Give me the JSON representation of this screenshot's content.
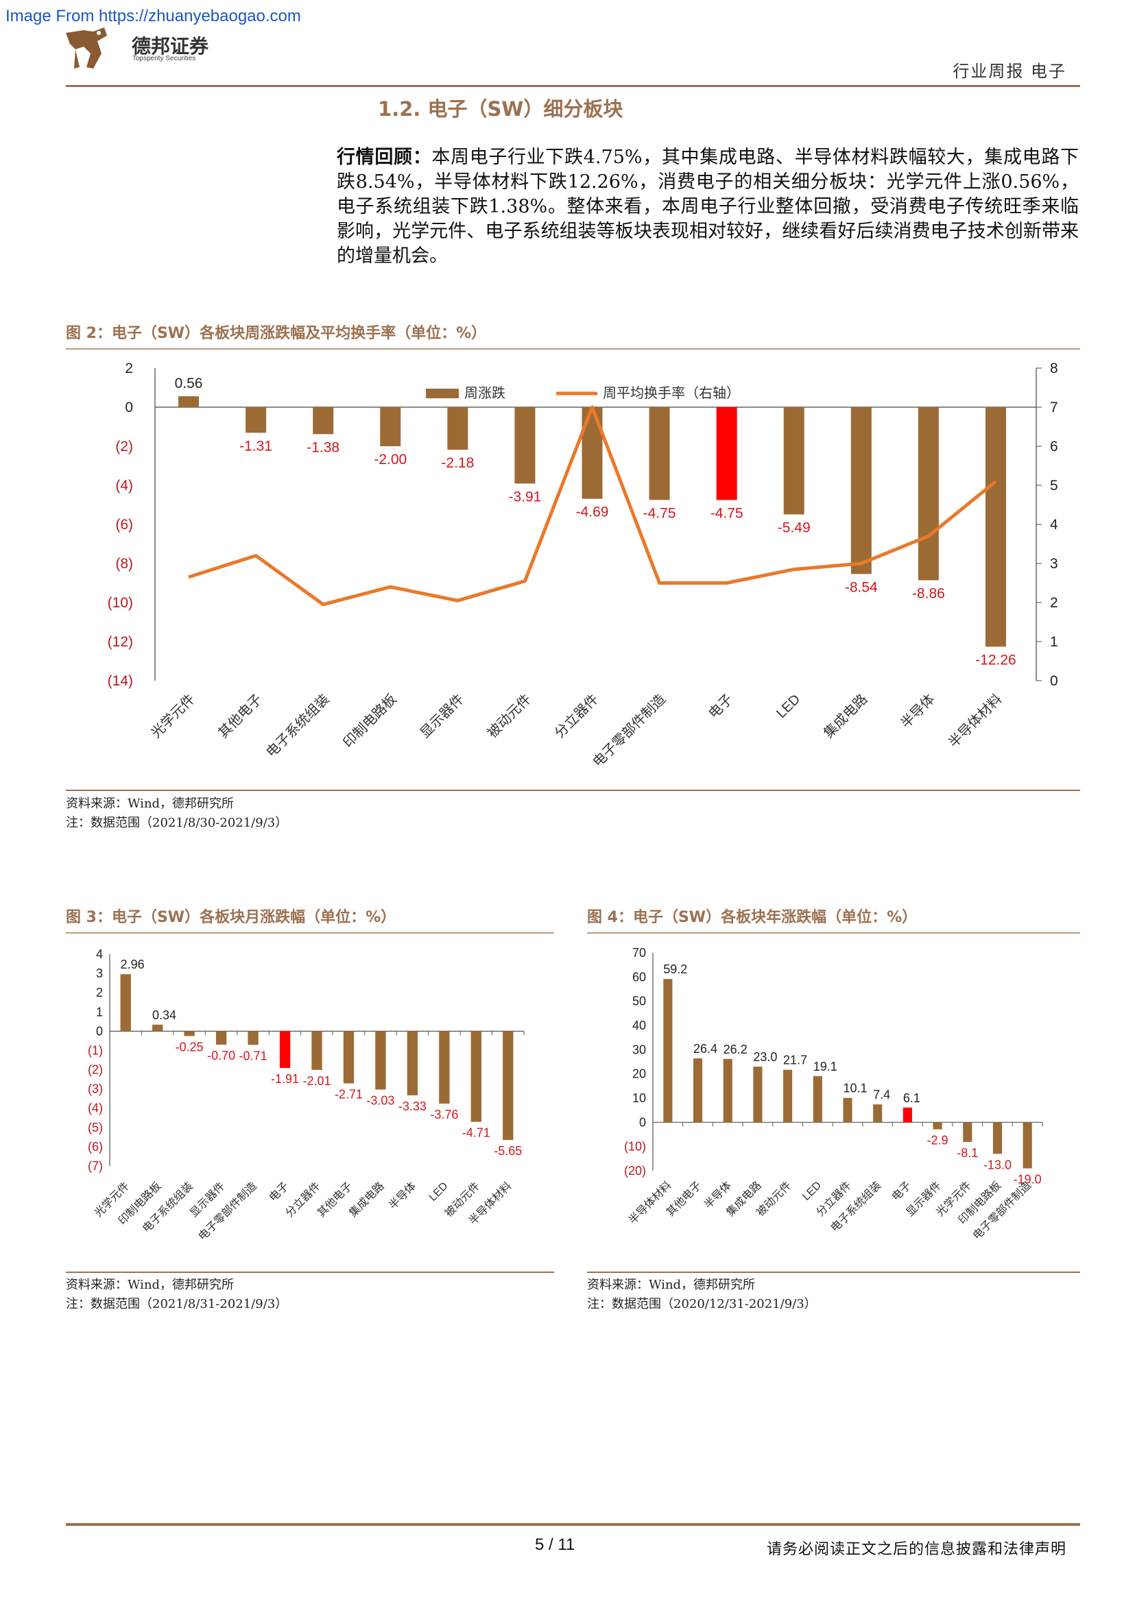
{
  "watermark": "Image From https://zhuanyebaogao.com",
  "header": {
    "brand_cn": "德邦证券",
    "brand_en": "Topsperity Securities",
    "right": "行业周报 电子"
  },
  "section_title": "1.2. 电子（SW）细分板块",
  "paragraph": {
    "lead": "行情回顾：",
    "body": "本周电子行业下跌4.75%，其中集成电路、半导体材料跌幅较大，集成电路下跌8.54%，半导体材料下跌12.26%，消费电子的相关细分板块：光学元件上涨0.56%，电子系统组装下跌1.38%。整体来看，本周电子行业整体回撤，受消费电子传统旺季来临影响，光学元件、电子系统组装等板块表现相对较好，继续看好后续消费电子技术创新带来的增量机会。"
  },
  "figures": [
    {
      "title": "图 2：电子（SW）各板块周涨跌幅及平均换手率（单位：%）",
      "source": "资料来源：Wind，德邦研究所",
      "note": "注：数据范围（2021/8/30-2021/9/3）"
    },
    {
      "title": "图 3：电子（SW）各板块月涨跌幅（单位：%）",
      "source": "资料来源：Wind，德邦研究所",
      "note": "注：数据范围（2021/8/31-2021/9/3）"
    },
    {
      "title": "图 4：电子（SW）各板块年涨跌幅（单位：%）",
      "source": "资料来源：Wind，德邦研究所",
      "note": "注：数据范围（2020/12/31-2021/9/3）"
    }
  ],
  "chart_data": [
    {
      "type": "bar",
      "categories": [
        "光学元件",
        "其他电子",
        "电子系统组装",
        "印制电路板",
        "显示器件",
        "被动元件",
        "分立器件",
        "电子零部件制造",
        "电子",
        "LED",
        "集成电路",
        "半导体",
        "半导体材料"
      ],
      "series": [
        {
          "name": "周涨跌",
          "type": "bar",
          "values": [
            0.56,
            -1.31,
            -1.38,
            -2.0,
            -2.18,
            -3.91,
            -4.69,
            -4.75,
            -4.75,
            -5.49,
            -8.54,
            -8.86,
            -12.26
          ],
          "value_labels": [
            "0.56",
            "-1.31",
            "-1.38",
            "-2.00",
            "-2.18",
            "-3.91",
            "-4.69",
            "-4.75",
            "-4.75",
            "-5.49",
            "-8.54",
            "-8.86",
            "-12.26"
          ]
        },
        {
          "name": "周平均换手率（右轴）",
          "type": "line",
          "axis": "right",
          "values": [
            2.65,
            3.2,
            1.95,
            2.4,
            2.05,
            2.55,
            7.0,
            2.5,
            2.5,
            2.85,
            3.0,
            3.7,
            5.1
          ]
        }
      ],
      "highlight_category": "电子",
      "y_left_ticks": [
        "2",
        "0",
        "(2)",
        "(4)",
        "(6)",
        "(8)",
        "(10)",
        "(12)",
        "(14)"
      ],
      "y_left_range": [
        -14,
        2
      ],
      "y_right_ticks": [
        "8",
        "7",
        "6",
        "5",
        "4",
        "3",
        "2",
        "1",
        "0"
      ],
      "y_right_range": [
        0,
        8
      ],
      "legend": "top-center",
      "colors": {
        "bar": "#9c6b35",
        "highlight": "#ff0000",
        "line": "#e9792a",
        "negative_label": "#d9141c",
        "positive_label": "#222222",
        "negative_tick": "#c0141c"
      }
    },
    {
      "type": "bar",
      "categories": [
        "光学元件",
        "印制电路板",
        "电子系统组装",
        "显示器件",
        "电子零部件制造",
        "电子",
        "分立器件",
        "其他电子",
        "集成电路",
        "半导体",
        "LED",
        "被动元件",
        "半导体材料"
      ],
      "values": [
        2.96,
        0.34,
        -0.25,
        -0.7,
        -0.71,
        -1.91,
        -2.01,
        -2.71,
        -3.03,
        -3.33,
        -3.76,
        -4.71,
        -5.65
      ],
      "value_labels": [
        "2.96",
        "0.34",
        "-0.25",
        "-0.70",
        "-0.71",
        "-1.91",
        "-2.01",
        "-2.71",
        "-3.03",
        "-3.33",
        "-3.76",
        "-4.71",
        "-5.65"
      ],
      "highlight_category": "电子",
      "y_ticks": [
        "4",
        "3",
        "2",
        "1",
        "0",
        "(1)",
        "(2)",
        "(3)",
        "(4)",
        "(5)",
        "(6)",
        "(7)"
      ],
      "ylim": [
        -7,
        4
      ],
      "colors": {
        "bar": "#9c6b35",
        "highlight": "#ff0000",
        "negative_label": "#d9141c",
        "positive_label": "#222222",
        "negative_tick": "#c0141c"
      }
    },
    {
      "type": "bar",
      "categories": [
        "半导体材料",
        "其他电子",
        "半导体",
        "集成电路",
        "被动元件",
        "LED",
        "分立器件",
        "电子系统组装",
        "电子",
        "显示器件",
        "光学元件",
        "印制电路板",
        "电子零部件制造"
      ],
      "values": [
        59.2,
        26.4,
        26.2,
        23.0,
        21.7,
        19.1,
        10.1,
        7.4,
        6.1,
        -2.9,
        -8.1,
        -13.0,
        -19.0
      ],
      "value_labels": [
        "59.2",
        "26.4",
        "26.2",
        "23.0",
        "21.7",
        "19.1",
        "10.1",
        "7.4",
        "6.1",
        "-2.9",
        "-8.1",
        "-13.0",
        "-19.0"
      ],
      "highlight_category": "电子",
      "y_ticks": [
        "70",
        "60",
        "50",
        "40",
        "30",
        "20",
        "10",
        "0",
        "(10)",
        "(20)"
      ],
      "ylim": [
        -20,
        70
      ],
      "colors": {
        "bar": "#9c6b35",
        "highlight": "#ff0000",
        "negative_label": "#d9141c",
        "positive_label": "#222222",
        "negative_tick": "#c0141c"
      }
    }
  ],
  "footer": {
    "page": "5 / 11",
    "disclaimer": "请务必阅读正文之后的信息披露和法律声明"
  }
}
